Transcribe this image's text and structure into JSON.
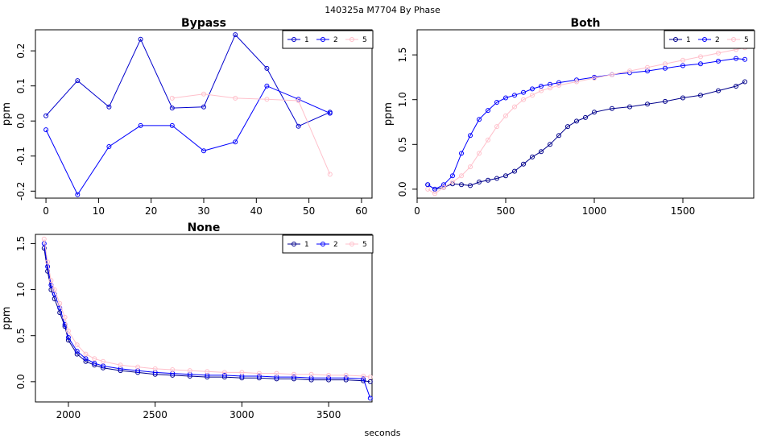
{
  "figure": {
    "title": "140325a    M7704   By Phase",
    "xlabel": "seconds"
  },
  "colors": {
    "series_1": "#00008b",
    "series_2": "#0000ff",
    "series_5": "#ffc0cb"
  },
  "chart_data": [
    {
      "type": "line",
      "title": "Bypass",
      "xlabel": "",
      "ylabel": "ppm",
      "xlim": [
        -2,
        62
      ],
      "ylim": [
        -0.22,
        0.26
      ],
      "xticks": [
        0,
        10,
        20,
        30,
        40,
        50,
        60
      ],
      "yticks": [
        -0.2,
        -0.1,
        0.0,
        0.1,
        0.2
      ],
      "legend": {
        "position": "top-right",
        "entries": [
          "1",
          "2",
          "5"
        ]
      },
      "series": [
        {
          "name": "1",
          "color": "#0000cd",
          "x": [
            0,
            6,
            12,
            18,
            24,
            30,
            36,
            42,
            48,
            54
          ],
          "y": [
            0.015,
            0.115,
            0.04,
            0.233,
            0.037,
            0.04,
            0.246,
            0.15,
            -0.015,
            0.025
          ]
        },
        {
          "name": "2",
          "color": "#0000ff",
          "x": [
            0,
            6,
            12,
            18,
            24,
            30,
            36,
            42,
            48,
            54
          ],
          "y": [
            -0.025,
            -0.21,
            -0.073,
            -0.013,
            -0.013,
            -0.085,
            -0.06,
            0.1,
            0.062,
            0.022
          ]
        },
        {
          "name": "5",
          "color": "#ffc0cb",
          "x": [
            24,
            30,
            36,
            42,
            48,
            54
          ],
          "y": [
            0.065,
            0.077,
            0.065,
            0.062,
            0.058,
            -0.152
          ]
        }
      ]
    },
    {
      "type": "scatter",
      "title": "Both",
      "xlabel": "",
      "ylabel": "ppm",
      "xlim": [
        0,
        1900
      ],
      "ylim": [
        -0.1,
        1.78
      ],
      "xticks": [
        0,
        500,
        1000,
        1500
      ],
      "yticks": [
        0.0,
        0.5,
        1.0,
        1.5
      ],
      "legend": {
        "position": "top-right",
        "entries": [
          "1",
          "2",
          "5"
        ]
      },
      "series": [
        {
          "name": "1",
          "color": "#00008b",
          "x": [
            60,
            100,
            150,
            200,
            250,
            300,
            350,
            400,
            450,
            500,
            550,
            600,
            650,
            700,
            750,
            800,
            850,
            900,
            950,
            1000,
            1100,
            1200,
            1300,
            1400,
            1500,
            1600,
            1700,
            1800,
            1850
          ],
          "y": [
            0.05,
            0.0,
            0.02,
            0.06,
            0.05,
            0.04,
            0.08,
            0.1,
            0.12,
            0.15,
            0.2,
            0.28,
            0.36,
            0.42,
            0.5,
            0.6,
            0.7,
            0.76,
            0.8,
            0.86,
            0.9,
            0.92,
            0.95,
            0.98,
            1.02,
            1.05,
            1.1,
            1.15,
            1.2
          ]
        },
        {
          "name": "2",
          "color": "#0000ff",
          "x": [
            60,
            100,
            150,
            200,
            250,
            300,
            350,
            400,
            450,
            500,
            550,
            600,
            650,
            700,
            750,
            800,
            900,
            1000,
            1100,
            1200,
            1300,
            1400,
            1500,
            1600,
            1700,
            1800,
            1850
          ],
          "y": [
            0.05,
            0.0,
            0.05,
            0.15,
            0.4,
            0.6,
            0.78,
            0.88,
            0.97,
            1.02,
            1.05,
            1.08,
            1.12,
            1.15,
            1.17,
            1.19,
            1.22,
            1.25,
            1.28,
            1.3,
            1.32,
            1.35,
            1.38,
            1.4,
            1.43,
            1.46,
            1.45
          ]
        },
        {
          "name": "5",
          "color": "#ffc0cb",
          "x": [
            60,
            100,
            150,
            200,
            250,
            300,
            350,
            400,
            450,
            500,
            550,
            600,
            650,
            700,
            750,
            800,
            900,
            1000,
            1100,
            1200,
            1300,
            1400,
            1500,
            1600,
            1700,
            1800,
            1850
          ],
          "y": [
            0.0,
            -0.05,
            0.02,
            0.08,
            0.15,
            0.25,
            0.4,
            0.55,
            0.7,
            0.82,
            0.92,
            1.0,
            1.05,
            1.1,
            1.13,
            1.16,
            1.2,
            1.24,
            1.28,
            1.32,
            1.36,
            1.4,
            1.44,
            1.48,
            1.52,
            1.56,
            1.58
          ]
        }
      ]
    },
    {
      "type": "scatter",
      "title": "None",
      "xlabel": "seconds",
      "ylabel": "ppm",
      "xlim": [
        1810,
        3750
      ],
      "ylim": [
        -0.22,
        1.6
      ],
      "xticks": [
        2000,
        2500,
        3000,
        3500
      ],
      "yticks": [
        0.0,
        0.5,
        1.0,
        1.5
      ],
      "legend": {
        "position": "top-right",
        "entries": [
          "1",
          "2",
          "5"
        ]
      },
      "series": [
        {
          "name": "1",
          "color": "#00008b",
          "x": [
            1860,
            1880,
            1900,
            1920,
            1950,
            1980,
            2000,
            2050,
            2100,
            2150,
            2200,
            2300,
            2400,
            2500,
            2600,
            2700,
            2800,
            2900,
            3000,
            3100,
            3200,
            3300,
            3400,
            3500,
            3600,
            3700,
            3740
          ],
          "y": [
            1.45,
            1.2,
            1.0,
            0.9,
            0.75,
            0.6,
            0.45,
            0.3,
            0.22,
            0.18,
            0.15,
            0.12,
            0.1,
            0.08,
            0.07,
            0.06,
            0.05,
            0.05,
            0.04,
            0.04,
            0.03,
            0.03,
            0.02,
            0.02,
            0.02,
            0.01,
            0.0
          ]
        },
        {
          "name": "2",
          "color": "#0000ff",
          "x": [
            1860,
            1880,
            1900,
            1920,
            1950,
            1980,
            2000,
            2050,
            2100,
            2150,
            2200,
            2300,
            2400,
            2500,
            2600,
            2700,
            2800,
            2900,
            3000,
            3100,
            3200,
            3300,
            3400,
            3500,
            3600,
            3700,
            3740
          ],
          "y": [
            1.5,
            1.25,
            1.05,
            0.95,
            0.8,
            0.62,
            0.48,
            0.33,
            0.25,
            0.2,
            0.17,
            0.14,
            0.12,
            0.1,
            0.09,
            0.08,
            0.07,
            0.07,
            0.06,
            0.06,
            0.05,
            0.05,
            0.04,
            0.04,
            0.04,
            0.03,
            -0.18
          ]
        },
        {
          "name": "5",
          "color": "#ffc0cb",
          "x": [
            1860,
            1880,
            1900,
            1920,
            1950,
            1980,
            2000,
            2050,
            2100,
            2150,
            2200,
            2300,
            2400,
            2500,
            2600,
            2700,
            2800,
            2900,
            3000,
            3100,
            3200,
            3300,
            3400,
            3500,
            3600,
            3700,
            3740
          ],
          "y": [
            1.55,
            1.3,
            1.1,
            1.0,
            0.85,
            0.7,
            0.55,
            0.4,
            0.3,
            0.25,
            0.22,
            0.18,
            0.16,
            0.14,
            0.13,
            0.12,
            0.11,
            0.1,
            0.1,
            0.09,
            0.09,
            0.08,
            0.08,
            0.07,
            0.07,
            0.06,
            0.05
          ]
        }
      ]
    }
  ]
}
